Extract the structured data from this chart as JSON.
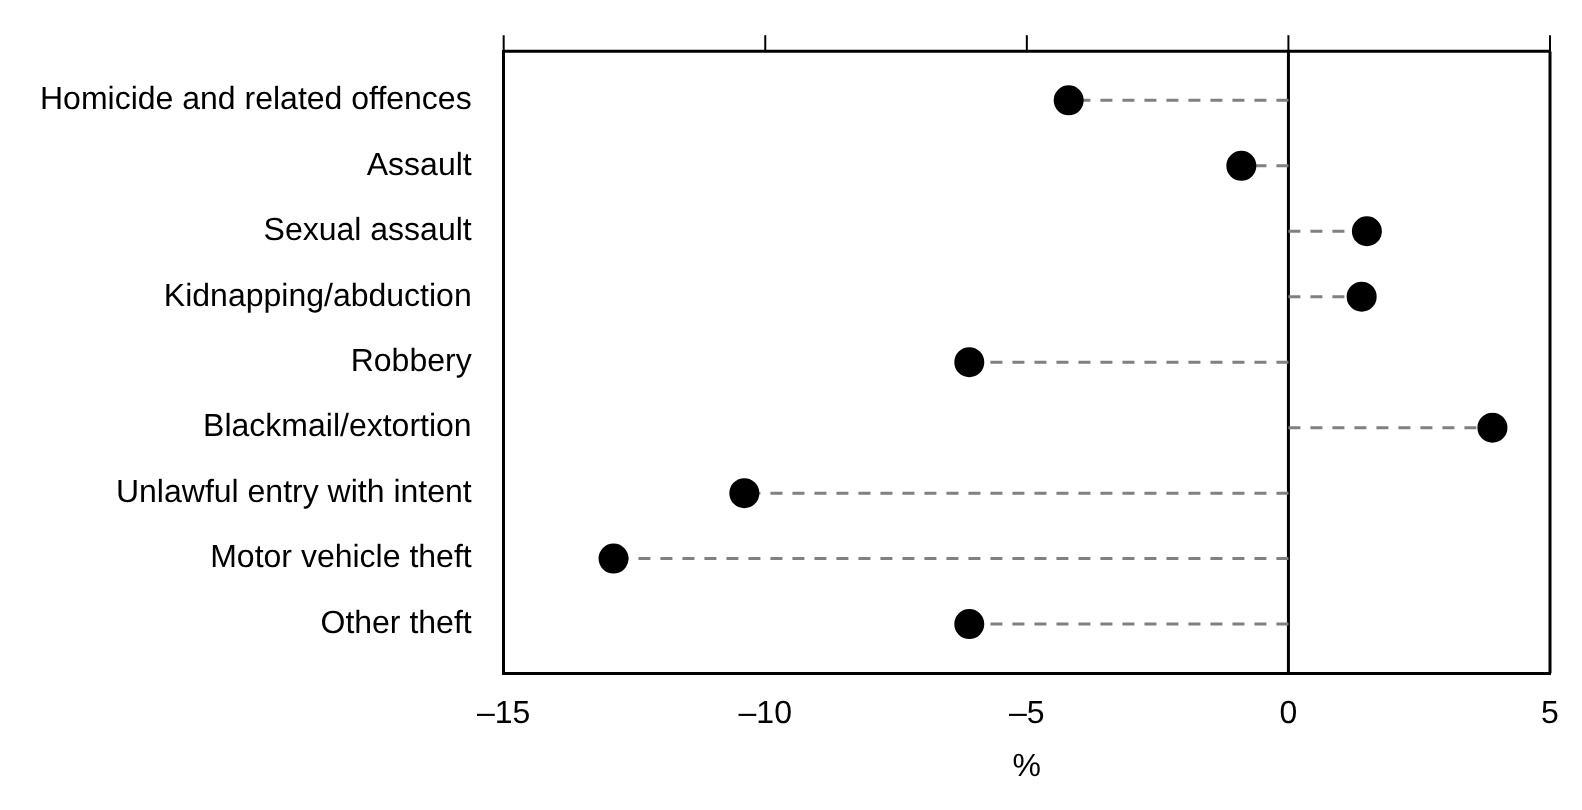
{
  "chart_data": {
    "type": "lollipop",
    "orientation": "horizontal",
    "xlabel": "%",
    "categories": [
      "Homicide and related offences",
      "Assault",
      "Sexual assault",
      "Kidnapping/abduction",
      "Robbery",
      "Blackmail/extortion",
      "Unlawful entry with intent",
      "Motor vehicle theft",
      "Other theft"
    ],
    "series": [
      {
        "color": "#000000",
        "values": [
          -4.2,
          -0.9,
          1.5,
          1.4,
          -6.1,
          3.9,
          -10.4,
          -12.9,
          -6.1
        ]
      }
    ],
    "xlim": [
      -15,
      5
    ],
    "xticks": [
      {
        "value": -15,
        "label": "–15"
      },
      {
        "value": -10,
        "label": "–10"
      },
      {
        "value": -5,
        "label": "–5"
      },
      0,
      5
    ],
    "ref_lines": [
      {
        "axis": "x",
        "value": 0,
        "color": "#000000"
      }
    ],
    "marker": "circle",
    "line_style": "dashed",
    "grid": false,
    "legend": false
  }
}
